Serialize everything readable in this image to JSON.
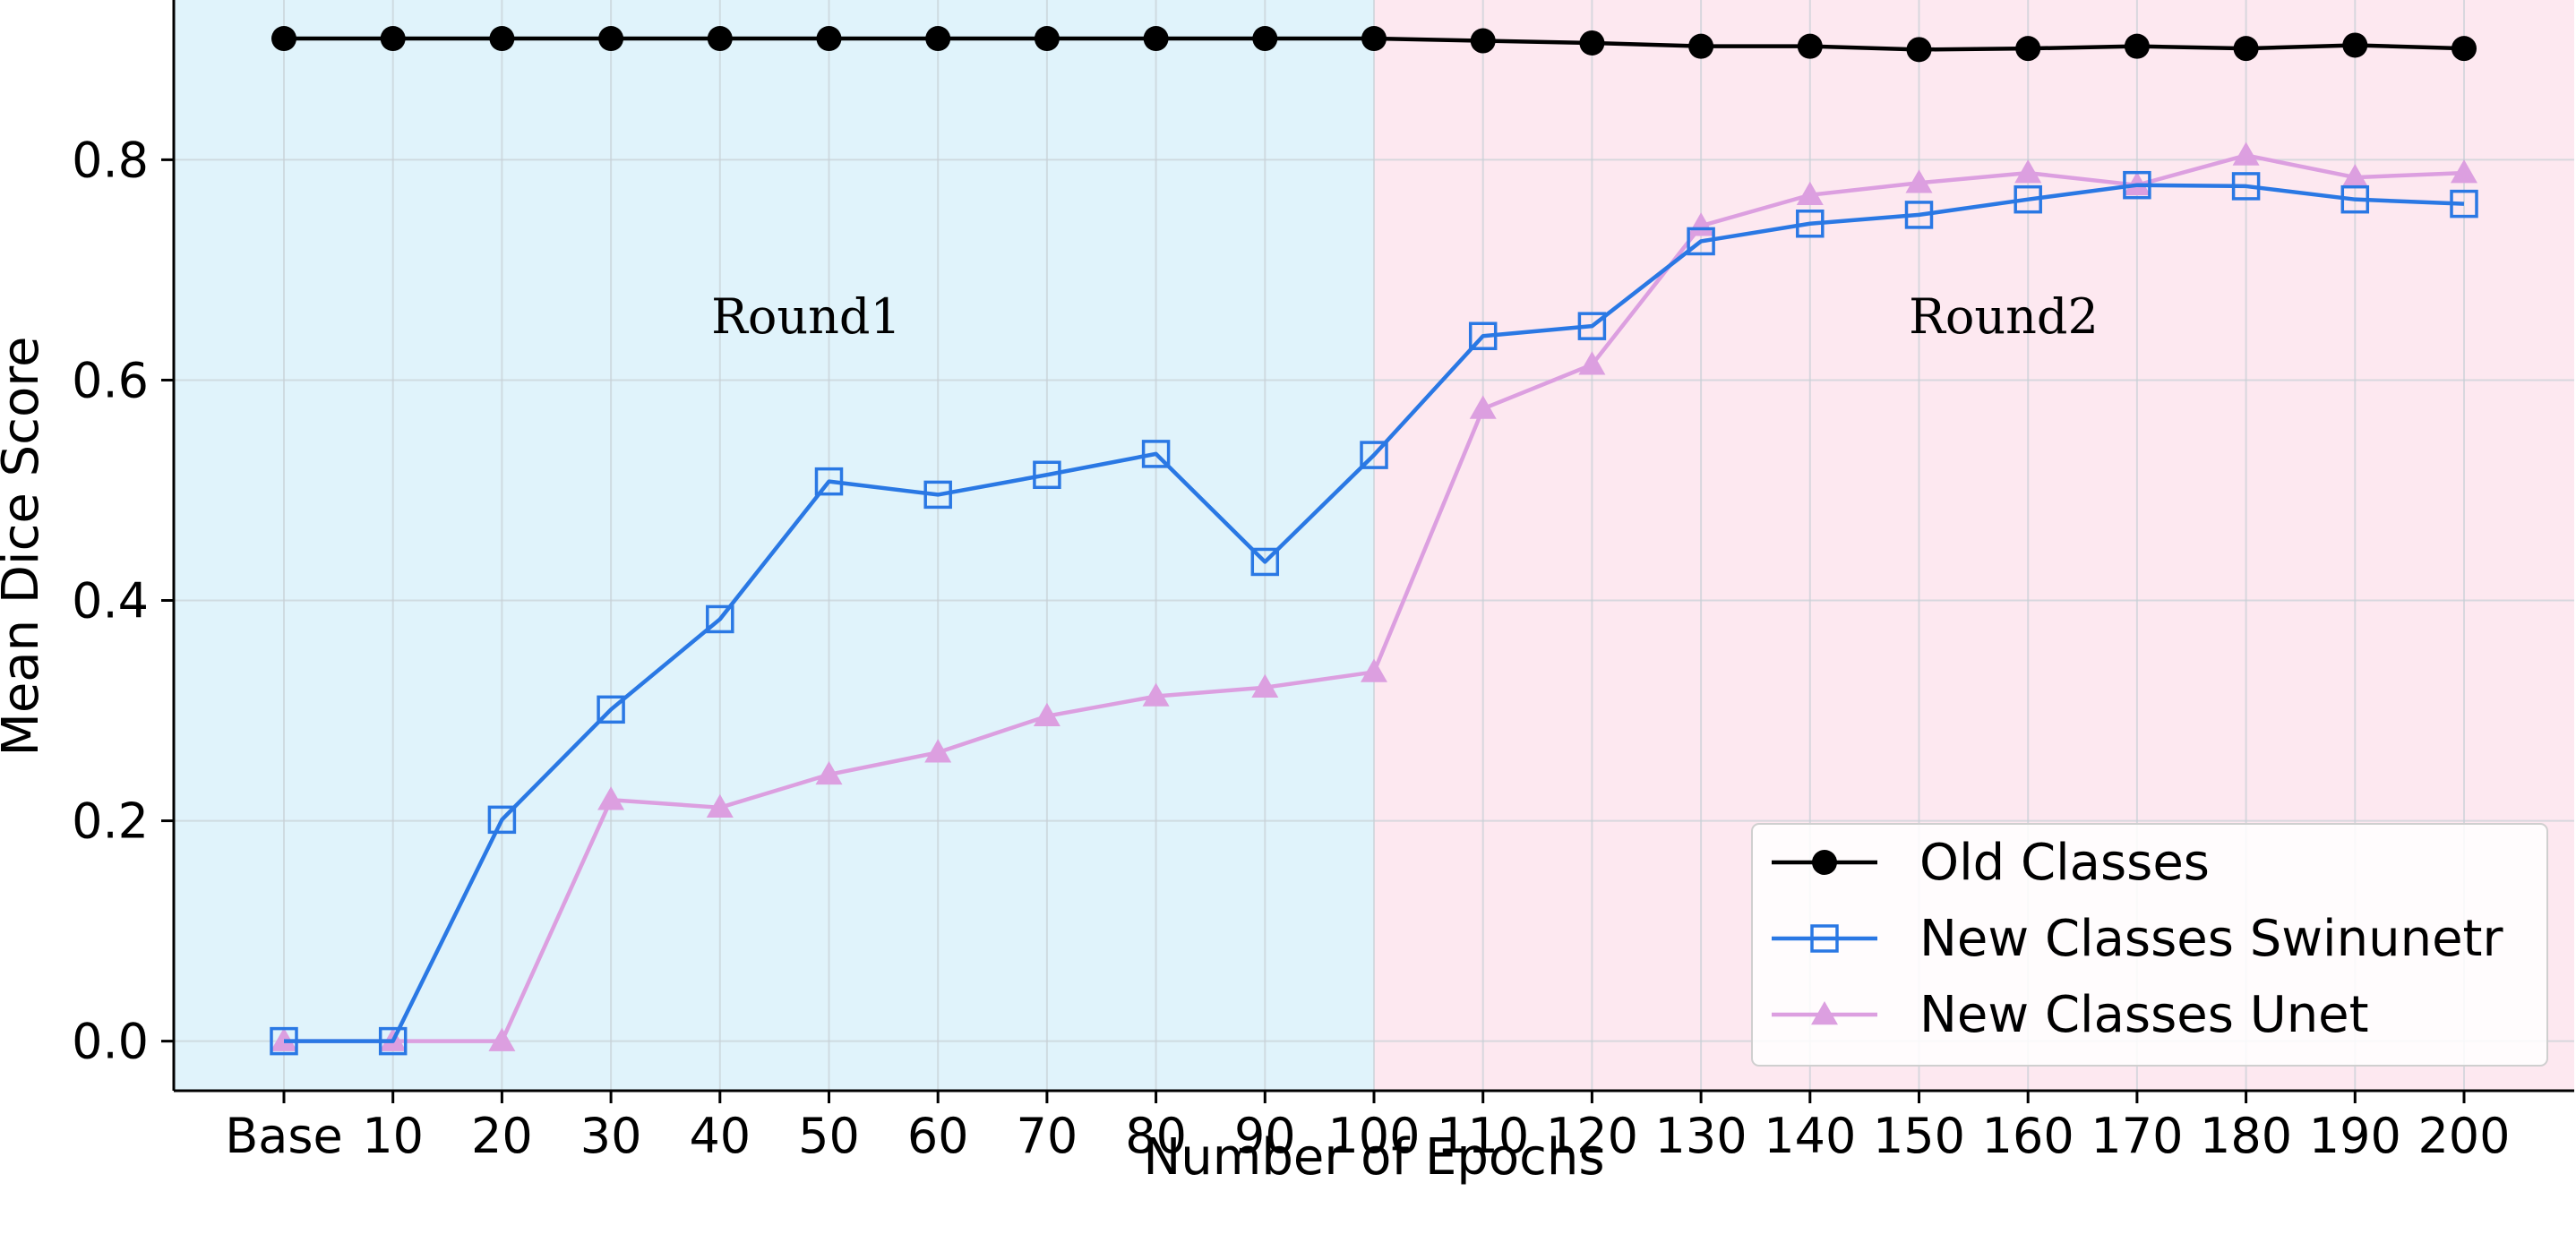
{
  "chart_data": {
    "type": "line",
    "xlabel": "Number of Epochs",
    "ylabel": "Mean Dice Score",
    "categories": [
      "Base",
      "10",
      "20",
      "30",
      "40",
      "50",
      "60",
      "70",
      "80",
      "90",
      "100",
      "110",
      "120",
      "130",
      "140",
      "150",
      "160",
      "170",
      "180",
      "190",
      "200"
    ],
    "ylim": [
      -0.045,
      0.945
    ],
    "yticks": [
      "0.0",
      "0.2",
      "0.4",
      "0.6",
      "0.8"
    ],
    "ytick_values": [
      0.0,
      0.2,
      0.4,
      0.6,
      0.8
    ],
    "grid": true,
    "legend_position": "lower-right",
    "regions": [
      {
        "label": "Round1",
        "from_category": "Base",
        "to_category": "100",
        "color": "#e0f3fb"
      },
      {
        "label": "Round2",
        "from_category": "100",
        "to_category": "200",
        "color": "#fde8f0"
      }
    ],
    "series": [
      {
        "name": "Old Classes",
        "color": "#000000",
        "marker": "circle",
        "values": [
          0.91,
          0.91,
          0.91,
          0.91,
          0.91,
          0.91,
          0.91,
          0.91,
          0.91,
          0.91,
          0.91,
          0.908,
          0.906,
          0.903,
          0.903,
          0.9,
          0.901,
          0.903,
          0.901,
          0.904,
          0.901
        ]
      },
      {
        "name": "New Classes Swinunetr",
        "color": "#2a78e4",
        "marker": "square",
        "values": [
          0.0,
          0.0,
          0.201,
          0.301,
          0.383,
          0.508,
          0.496,
          0.514,
          0.533,
          0.435,
          0.532,
          0.64,
          0.649,
          0.726,
          0.742,
          0.75,
          0.764,
          0.777,
          0.776,
          0.764,
          0.76
        ]
      },
      {
        "name": "New Classes Unet",
        "color": "#dc9fe0",
        "marker": "triangle",
        "values": [
          0.0,
          0.0,
          0.0,
          0.219,
          0.212,
          0.242,
          0.262,
          0.295,
          0.313,
          0.321,
          0.335,
          0.574,
          0.614,
          0.74,
          0.768,
          0.779,
          0.788,
          0.777,
          0.804,
          0.784,
          0.788
        ]
      }
    ]
  }
}
